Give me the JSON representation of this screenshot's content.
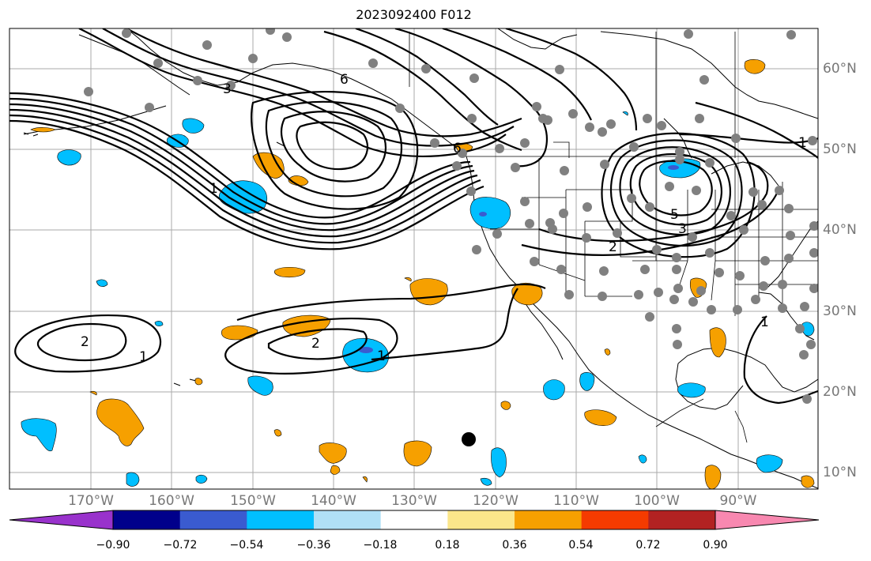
{
  "title": "2023092400 F012",
  "lon_labels": [
    "170°W",
    "160°W",
    "150°W",
    "140°W",
    "130°W",
    "120°W",
    "110°W",
    "100°W",
    "90°W"
  ],
  "lat_labels": [
    "60°N",
    "50°N",
    "40°N",
    "30°N",
    "20°N",
    "10°N"
  ],
  "contour_labels": [
    "1",
    "2",
    "3",
    "5",
    "6",
    "2",
    "1",
    "2",
    "1",
    "1",
    "1",
    "6",
    "3"
  ],
  "colorbar": {
    "ticks": [
      "−0.90",
      "−0.72",
      "−0.54",
      "−0.36",
      "−0.18",
      "0.18",
      "0.36",
      "0.54",
      "0.72",
      "0.90"
    ],
    "colors": [
      "#9932cc",
      "#00008b",
      "#3a5bd0",
      "#00bfff",
      "#b0e0f6",
      "#ffffff",
      "#fbe68a",
      "#f6a000",
      "#f53b00",
      "#b22222",
      "#f888b0"
    ]
  },
  "colors": {
    "negative_fill": "#00bfff",
    "positive_fill": "#f6a000",
    "station_dot": "#808080",
    "contour": "#000000",
    "grid": "#aaaaaa"
  }
}
